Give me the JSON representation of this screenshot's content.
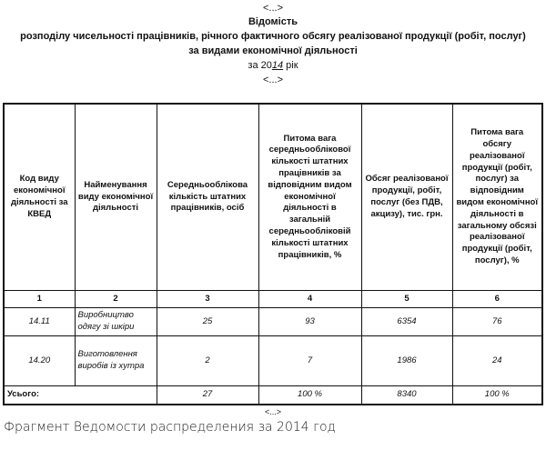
{
  "header": {
    "ellipsis_top": "<...>",
    "title": "Відомість",
    "subtitle_1": "розподілу чисельності працівників, річного фактичного обсягу реалізованої продукції (робіт, послуг)",
    "subtitle_2": "за видами економічної діяльності",
    "year_prefix": "за 20",
    "year_suffix": "14",
    "year_word": " рік",
    "ellipsis_bottom": "<...>"
  },
  "table": {
    "columns": [
      "Код виду економічної діяльності за КВЕД",
      "Найменування виду економічної діяльності",
      "Середньооблікова кількість штатних працівників, осіб",
      "Питома вага середньооблікової кількості штатних працівників за відповідним видом економічної діяльності в загальній середньообліковій кількості штатних працівників, %",
      "Обсяг реалізованої продукції, робіт, послуг (без ПДВ, акцизу), тис. грн.",
      "Питома вага обсягу реалізованої продукції (робіт, послуг) за відповідним видом економічної діяльності в загальному обсязі реалізованої продукції (робіт, послуг), %"
    ],
    "column_numbers": [
      "1",
      "2",
      "3",
      "4",
      "5",
      "6"
    ],
    "rows": [
      {
        "code": "14.11",
        "name": "Виробництво одягу зі шкіри",
        "employees": "25",
        "employees_share": "93",
        "volume": "6354",
        "volume_share": "76"
      },
      {
        "code": "14.20",
        "name": "Виготовлення виробів із хутра",
        "employees": "2",
        "employees_share": "7",
        "volume": "1986",
        "volume_share": "24"
      }
    ],
    "total": {
      "label": "Усього:",
      "employees": "27",
      "employees_share": "100 %",
      "volume": "8340",
      "volume_share": "100 %"
    }
  },
  "footer": {
    "ellipsis": "<...>",
    "caption": "Фрагмент Ведомости распределения за 2014 год"
  }
}
